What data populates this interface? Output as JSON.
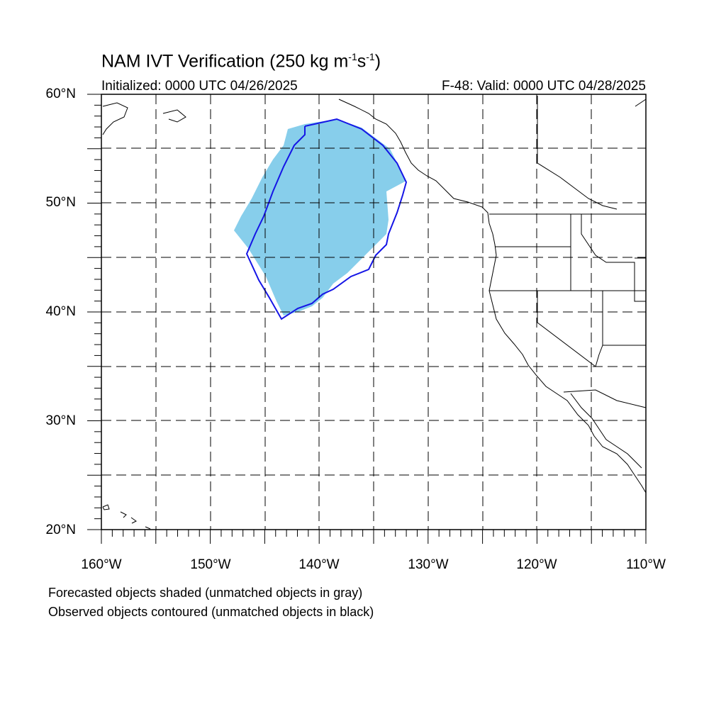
{
  "title": {
    "main": "NAM IVT Verification (250 kg m",
    "sup1": "-1",
    "mid": "s",
    "sup2": "-1",
    "end": ")"
  },
  "subtitle": {
    "initialized": "Initialized: 0000 UTC 04/26/2025",
    "valid": "F-48: Valid: 0000 UTC 04/28/2025"
  },
  "axes": {
    "lat_labels": [
      "60°N",
      "50°N",
      "40°N",
      "30°N",
      "20°N"
    ],
    "lon_labels": [
      "160°W",
      "150°W",
      "140°W",
      "130°W",
      "120°W",
      "110°W"
    ]
  },
  "legend": {
    "line1": "Forecasted objects shaded (unmatched objects in gray)",
    "line2": "Observed objects contoured (unmatched objects in black)"
  },
  "colors": {
    "forecast_fill": "#87ceeb",
    "observed_contour": "#1515e6",
    "coast": "#000000",
    "grid": "#000000"
  }
}
